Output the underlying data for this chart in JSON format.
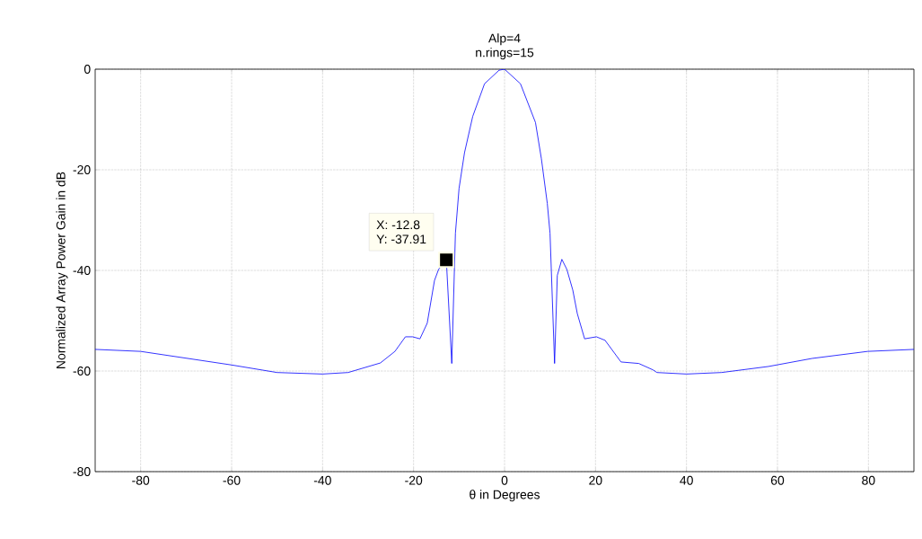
{
  "chart_data": {
    "type": "line",
    "title": "Alp=4",
    "subtitle": "n.rings=15",
    "xlabel": "θ in Degrees",
    "ylabel": "Normalized Array Power Gain in dB",
    "x": [
      -90,
      -80,
      -60,
      -50,
      -40,
      -34.4,
      -27.3,
      -24.1,
      -21.8,
      -20.2,
      -18.6,
      -17,
      -15.4,
      -14.5,
      -12.8,
      -11.6,
      -10.8,
      -10,
      -8.8,
      -7,
      -4.4,
      -1.2,
      0,
      3.5,
      6.8,
      8.1,
      9.4,
      10,
      11,
      11.6,
      12.6,
      13.7,
      15,
      16,
      17.6,
      20.2,
      22.1,
      25.6,
      29.5,
      32.7,
      33.5,
      40,
      47.7,
      58,
      67.6,
      79.8,
      90
    ],
    "series": [
      {
        "color": "#0000ff",
        "values": [
          -55.7,
          -56.1,
          -58.8,
          -60.3,
          -60.6,
          -60.3,
          -58.4,
          -56.1,
          -53.2,
          -53.2,
          -53.6,
          -50.5,
          -42,
          -39.8,
          -37.91,
          -58.5,
          -32.6,
          -23.7,
          -16.6,
          -9.4,
          -2.9,
          -0.2,
          0,
          -2.9,
          -10.6,
          -17.8,
          -26.7,
          -32.6,
          -58.5,
          -41,
          -37.8,
          -39.8,
          -43.9,
          -48.6,
          -53.6,
          -53.2,
          -53.9,
          -58.2,
          -58.5,
          -59.8,
          -60.3,
          -60.6,
          -60.3,
          -59.1,
          -57.5,
          -56.1,
          -55.7
        ]
      }
    ],
    "xlim": [
      -90,
      90
    ],
    "ylim": [
      -80,
      0
    ],
    "xticks": [
      -80,
      -60,
      -40,
      -20,
      0,
      20,
      40,
      60,
      80
    ],
    "yticks": [
      -80,
      -60,
      -40,
      -20,
      0
    ],
    "grid": true,
    "marker": "none",
    "line_style": "solid",
    "annotations": [
      "X: -12.8",
      {
        "text": "Y: -37.91",
        "x": -12.8,
        "y": -37.91
      }
    ]
  }
}
